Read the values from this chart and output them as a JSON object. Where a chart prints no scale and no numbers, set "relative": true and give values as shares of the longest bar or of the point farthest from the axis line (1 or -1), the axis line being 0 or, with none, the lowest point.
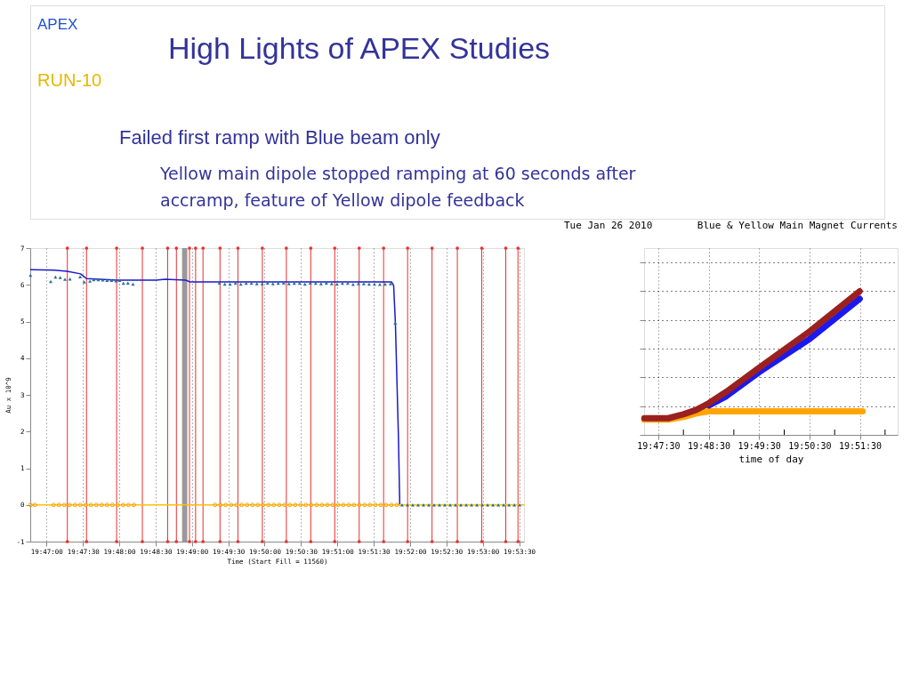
{
  "chart_data": [
    {
      "type": "line",
      "title": "High Lights of APEX Studies",
      "annotations": [
        "APEX",
        "RUN-10",
        "Failed first ramp with Blue beam only",
        "Yellow main dipole stopped ramping at 60 seconds after accramp, feature of Yellow dipole feedback"
      ],
      "xlabel": "Time (Start Fill = 11560)",
      "ylabel": "Au x 10^9",
      "xlim": [
        19.7796,
        19.89278
      ],
      "ylim": [
        -1,
        7
      ],
      "yticks": [
        -1,
        0,
        1,
        2,
        3,
        4,
        5,
        6,
        7
      ],
      "xticks": [
        {
          "value": 19.78333,
          "label": "19:47:00"
        },
        {
          "value": 19.79167,
          "label": "19:47:30"
        },
        {
          "value": 19.8,
          "label": "19:48:00"
        },
        {
          "value": 19.80833,
          "label": "19:48:30"
        },
        {
          "value": 19.81667,
          "label": "19:49:00"
        },
        {
          "value": 19.825,
          "label": "19:49:30"
        },
        {
          "value": 19.83333,
          "label": "19:50:00"
        },
        {
          "value": 19.84167,
          "label": "19:50:30"
        },
        {
          "value": 19.85,
          "label": "19:51:00"
        },
        {
          "value": 19.85833,
          "label": "19:51:30"
        },
        {
          "value": 19.86667,
          "label": "19:52:00"
        },
        {
          "value": 19.875,
          "label": "19:52:30"
        },
        {
          "value": 19.88333,
          "label": "19:53:00"
        },
        {
          "value": 19.89167,
          "label": "19:53:30"
        }
      ],
      "grid": "x",
      "ref_lines": [
        {
          "axis": "x",
          "value": 19.7881,
          "color": "#e83030"
        },
        {
          "axis": "x",
          "value": 19.7925,
          "color": "#e83030"
        },
        {
          "axis": "x",
          "value": 19.7994,
          "color": "#e83030"
        },
        {
          "axis": "x",
          "value": 19.8053,
          "color": "#e83030"
        },
        {
          "axis": "x",
          "value": 19.8111,
          "color": "#e83030"
        },
        {
          "axis": "x",
          "value": 19.8131,
          "color": "#e83030"
        },
        {
          "axis": "x",
          "value": 19.8161,
          "color": "#e83030"
        },
        {
          "axis": "x",
          "value": 19.8175,
          "color": "#e83030"
        },
        {
          "axis": "x",
          "value": 19.8192,
          "color": "#e83030"
        },
        {
          "axis": "x",
          "value": 19.8231,
          "color": "#e83030"
        },
        {
          "axis": "x",
          "value": 19.8272,
          "color": "#e83030"
        },
        {
          "axis": "x",
          "value": 19.8328,
          "color": "#e83030"
        },
        {
          "axis": "x",
          "value": 19.8383,
          "color": "#e83030"
        },
        {
          "axis": "x",
          "value": 19.8439,
          "color": "#e83030"
        },
        {
          "axis": "x",
          "value": 19.8494,
          "color": "#e83030"
        },
        {
          "axis": "x",
          "value": 19.855,
          "color": "#e83030"
        },
        {
          "axis": "x",
          "value": 19.8606,
          "color": "#e83030"
        },
        {
          "axis": "x",
          "value": 19.8661,
          "color": "#e83030"
        },
        {
          "axis": "x",
          "value": 19.8717,
          "color": "#e83030"
        },
        {
          "axis": "x",
          "value": 19.8775,
          "color": "#e83030"
        },
        {
          "axis": "x",
          "value": 19.8831,
          "color": "#e83030"
        },
        {
          "axis": "x",
          "value": 19.8886,
          "color": "#e83030"
        },
        {
          "axis": "x",
          "value": 19.8914,
          "color": "#e83030"
        }
      ],
      "bands": [
        {
          "axis": "x",
          "from": 19.8144,
          "to": 19.8156,
          "color": "#808080"
        }
      ],
      "series": [
        {
          "type": "line",
          "color": "#1a1acc",
          "marker": "none",
          "x": [
            19.7797,
            19.785,
            19.788,
            19.7911,
            19.7925,
            19.7993,
            19.8085,
            19.8105,
            19.8152,
            19.8162,
            19.8624,
            19.8629,
            19.8633,
            19.864,
            19.8643
          ],
          "values": [
            6.41,
            6.4,
            6.37,
            6.3,
            6.17,
            6.13,
            6.13,
            6.15,
            6.13,
            6.08,
            6.08,
            5.98,
            4.96,
            1.84,
            0
          ]
        },
        {
          "type": "line",
          "color": "#ffc000",
          "marker": "none",
          "x": [
            19.77972,
            19.89278
          ],
          "values": [
            0,
            0
          ]
        },
        {
          "type": "scatter",
          "color": "#f0a020",
          "marker": "circle",
          "x": [
            19.77966,
            19.78068,
            19.78497,
            19.78619,
            19.78742,
            19.78864,
            19.78987,
            19.79109,
            19.79232,
            19.79354,
            19.79477,
            19.796,
            19.79722,
            19.79845,
            19.79967,
            19.8009,
            19.80212,
            19.80335,
            19.82194,
            19.82317,
            19.82439,
            19.82562,
            19.82684,
            19.82807,
            19.82929,
            19.83052,
            19.83175,
            19.83297,
            19.8342,
            19.83542,
            19.83665,
            19.83787,
            19.8391,
            19.84032,
            19.84155,
            19.84277,
            19.844,
            19.84523,
            19.84645,
            19.84768,
            19.8489,
            19.85013,
            19.85135,
            19.85258,
            19.8538,
            19.85503,
            19.85625,
            19.85748,
            19.85871,
            19.85993,
            19.86116,
            19.86238,
            19.86361
          ],
          "values": [
            0,
            0,
            0,
            0,
            0,
            0,
            0,
            0,
            0,
            0,
            0,
            0,
            0,
            0,
            0,
            0,
            0,
            0,
            0,
            0,
            0,
            0,
            0,
            0,
            0,
            0,
            0,
            0,
            0,
            0,
            0,
            0,
            0,
            0,
            0,
            0,
            0,
            0,
            0,
            0,
            0,
            0,
            0,
            0,
            0,
            0,
            0,
            0,
            0,
            0,
            0,
            0,
            0
          ]
        },
        {
          "type": "scatter",
          "color": "#2a7090",
          "marker": "triangle",
          "x": [
            19.77966,
            19.78429,
            19.78538,
            19.78646,
            19.78756,
            19.78871,
            19.79103,
            19.79197,
            19.79328,
            19.79416,
            19.79518,
            19.7962,
            19.79722,
            19.79824,
            19.79926,
            19.80008,
            19.80096,
            19.80198,
            19.80315,
            19.82296,
            19.82419,
            19.82541,
            19.82664,
            19.82786,
            19.82909,
            19.83031,
            19.83154,
            19.83276,
            19.83399,
            19.83522,
            19.83644,
            19.83767,
            19.83889,
            19.84012,
            19.84134,
            19.84257,
            19.84379,
            19.84502,
            19.84625,
            19.84747,
            19.8487,
            19.84992,
            19.85115,
            19.85237,
            19.8536,
            19.85482,
            19.85605,
            19.85728,
            19.8585,
            19.85973,
            19.86095,
            19.86218,
            19.86326,
            19.86483,
            19.86606,
            19.86728,
            19.86851,
            19.86973,
            19.87096,
            19.87218,
            19.87341,
            19.87463,
            19.87586,
            19.87708,
            19.87831,
            19.87954,
            19.88076,
            19.88199,
            19.88321,
            19.88444,
            19.88566,
            19.88689,
            19.88811,
            19.88934,
            19.89056,
            19.89179
          ],
          "values": [
            6.26,
            6.09,
            6.21,
            6.2,
            6.15,
            6.16,
            6.22,
            6.08,
            6.1,
            6.14,
            6.14,
            6.13,
            6.12,
            6.12,
            6.11,
            6.12,
            6.04,
            6.05,
            6.02,
            6.05,
            6.02,
            6.02,
            6.05,
            6.02,
            6.04,
            6.04,
            6.03,
            6.03,
            6.05,
            6.03,
            6.04,
            6.05,
            6.03,
            6.04,
            6.04,
            6.02,
            6.05,
            6.04,
            6.03,
            6.05,
            6.03,
            6.02,
            6.04,
            6.04,
            6.01,
            6.03,
            6.03,
            6.02,
            6.02,
            6.01,
            6.02,
            6.03,
            4.96,
            0,
            0,
            0,
            0,
            0,
            0,
            0,
            0,
            0,
            0,
            0,
            0,
            0,
            0,
            0,
            0,
            0,
            0,
            0,
            0,
            0,
            0,
            0
          ]
        }
      ]
    },
    {
      "type": "line",
      "title": "Blue & Yellow Main Magnet Currents",
      "subtitle": "Tue Jan 26 2010",
      "xlabel": "time of day",
      "relative": true,
      "tick_labels": "x",
      "grid": true,
      "xlim": [
        19.787,
        19.87083
      ],
      "xticks": [
        {
          "value": 19.79167,
          "label": "19:47:30"
        },
        {
          "value": 19.8,
          "label": null
        },
        {
          "value": 19.80833,
          "label": "19:48:30"
        },
        {
          "value": 19.81667,
          "label": null
        },
        {
          "value": 19.825,
          "label": "19:49:30"
        },
        {
          "value": 19.83333,
          "label": null
        },
        {
          "value": 19.84167,
          "label": "19:50:30"
        },
        {
          "value": 19.85,
          "label": null
        },
        {
          "value": 19.85833,
          "label": "19:51:30"
        },
        {
          "value": 19.86667,
          "label": null
        }
      ],
      "series": [
        {
          "color": "#ffa500",
          "x": [
            19.78706,
            19.795,
            19.79997,
            19.80425,
            19.80844,
            19.85925
          ],
          "values": [
            0.107,
            0.107,
            0.125,
            0.15,
            0.164,
            0.164
          ]
        },
        {
          "color": "#1a1af0",
          "x": [
            19.80844,
            19.81419,
            19.82508,
            19.84178,
            19.85828
          ],
          "values": [
            0.205,
            0.269,
            0.437,
            0.668,
            0.947
          ]
        },
        {
          "color": "#9b2020",
          "x": [
            19.78706,
            19.795,
            19.79997,
            19.80425,
            19.80844,
            19.81419,
            19.82508,
            19.84178,
            19.85828
          ],
          "values": [
            0.116,
            0.116,
            0.143,
            0.174,
            0.221,
            0.3,
            0.468,
            0.721,
            1.0
          ]
        }
      ]
    }
  ]
}
